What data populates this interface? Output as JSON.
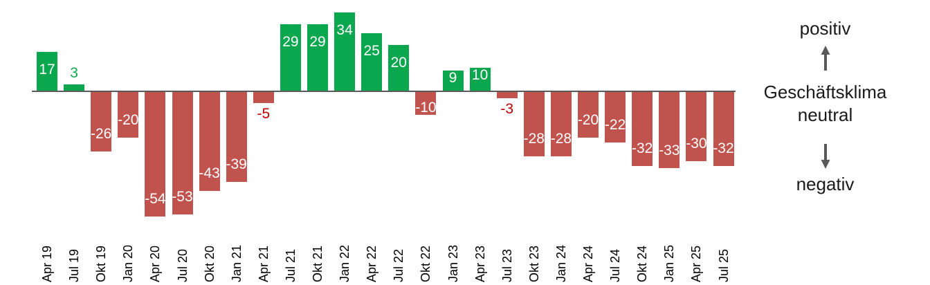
{
  "legend": {
    "positive_label": "positiv",
    "axis_title_line1": "Geschäftsklima",
    "axis_title_line2": "neutral",
    "negative_label": "negativ"
  },
  "chart_data": {
    "type": "bar",
    "title": "",
    "xlabel": "",
    "ylabel": "Geschäftsklima",
    "categories": [
      "Apr 19",
      "Jul 19",
      "Okt 19",
      "Jan 20",
      "Apr 20",
      "Jul 20",
      "Okt 20",
      "Jan 21",
      "Apr 21",
      "Jul 21",
      "Okt 21",
      "Jan 22",
      "Apr 22",
      "Jul 22",
      "Okt 22",
      "Jan 23",
      "Apr 23",
      "Jul 23",
      "Okt 23",
      "Jan 24",
      "Apr 24",
      "Jul 24",
      "Okt 24",
      "Jan 25",
      "Apr 25",
      "Jul 25"
    ],
    "values": [
      17,
      3,
      -26,
      -20,
      -54,
      -53,
      -43,
      -39,
      -5,
      29,
      29,
      34,
      25,
      20,
      -10,
      9,
      10,
      -3,
      -28,
      -28,
      -20,
      -22,
      -32,
      -33,
      -30,
      -32
    ],
    "ylim": [
      -60,
      40
    ],
    "grid": false,
    "legend_position": "right",
    "annotations": [
      "positiv",
      "neutral",
      "negativ"
    ],
    "colors": {
      "positive": "#0aa74e",
      "negative": "#c1534e",
      "label_inside": "#ffffff",
      "label_outside_positive": "#0aa74e",
      "label_outside_negative": "#c00000",
      "axis": "#595959",
      "arrow": "#595959",
      "text": "#1a1a1a"
    }
  }
}
